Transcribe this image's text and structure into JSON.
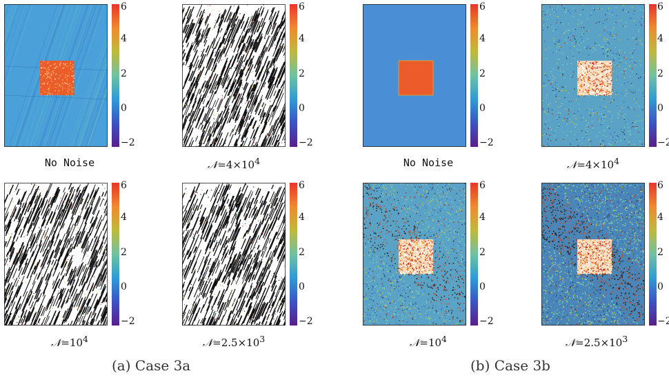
{
  "colorbar": {
    "ticks": [
      "6",
      "4",
      "2",
      "0",
      "−2"
    ],
    "colors": [
      "#e8352b",
      "#ef8a2e",
      "#bfb93c",
      "#6fc2a0",
      "#2f9bd6",
      "#3b53c4",
      "#5a1e8a"
    ]
  },
  "panels": [
    {
      "id": "a-no-noise",
      "caption": "No Noise",
      "caption_style": "mono",
      "style": "smooth-lines"
    },
    {
      "id": "a-n4e4",
      "caption_prefix": "𝒩",
      "caption": "=4×10",
      "caption_sup": "4",
      "style": "noise-stripes"
    },
    {
      "id": "a-n1e4",
      "caption_prefix": "𝒩",
      "caption": "=10",
      "caption_sup": "4",
      "style": "noise-stripes"
    },
    {
      "id": "a-n25e3",
      "caption_prefix": "𝒩",
      "caption": "=2.5×10",
      "caption_sup": "3",
      "style": "noise-stripes"
    },
    {
      "id": "b-no-noise",
      "caption": "No Noise",
      "caption_style": "mono",
      "style": "clean"
    },
    {
      "id": "b-n4e4",
      "caption_prefix": "𝒩",
      "caption": "=4×10",
      "caption_sup": "4",
      "style": "speckle-light"
    },
    {
      "id": "b-n1e4",
      "caption_prefix": "𝒩",
      "caption": "=10",
      "caption_sup": "4",
      "style": "speckle-medium"
    },
    {
      "id": "b-n25e3",
      "caption_prefix": "𝒩",
      "caption": "=2.5×10",
      "caption_sup": "3",
      "style": "speckle-heavy"
    }
  ],
  "subcaptions": {
    "a": "(a)  Case 3a",
    "b": "(b)  Case 3b"
  }
}
